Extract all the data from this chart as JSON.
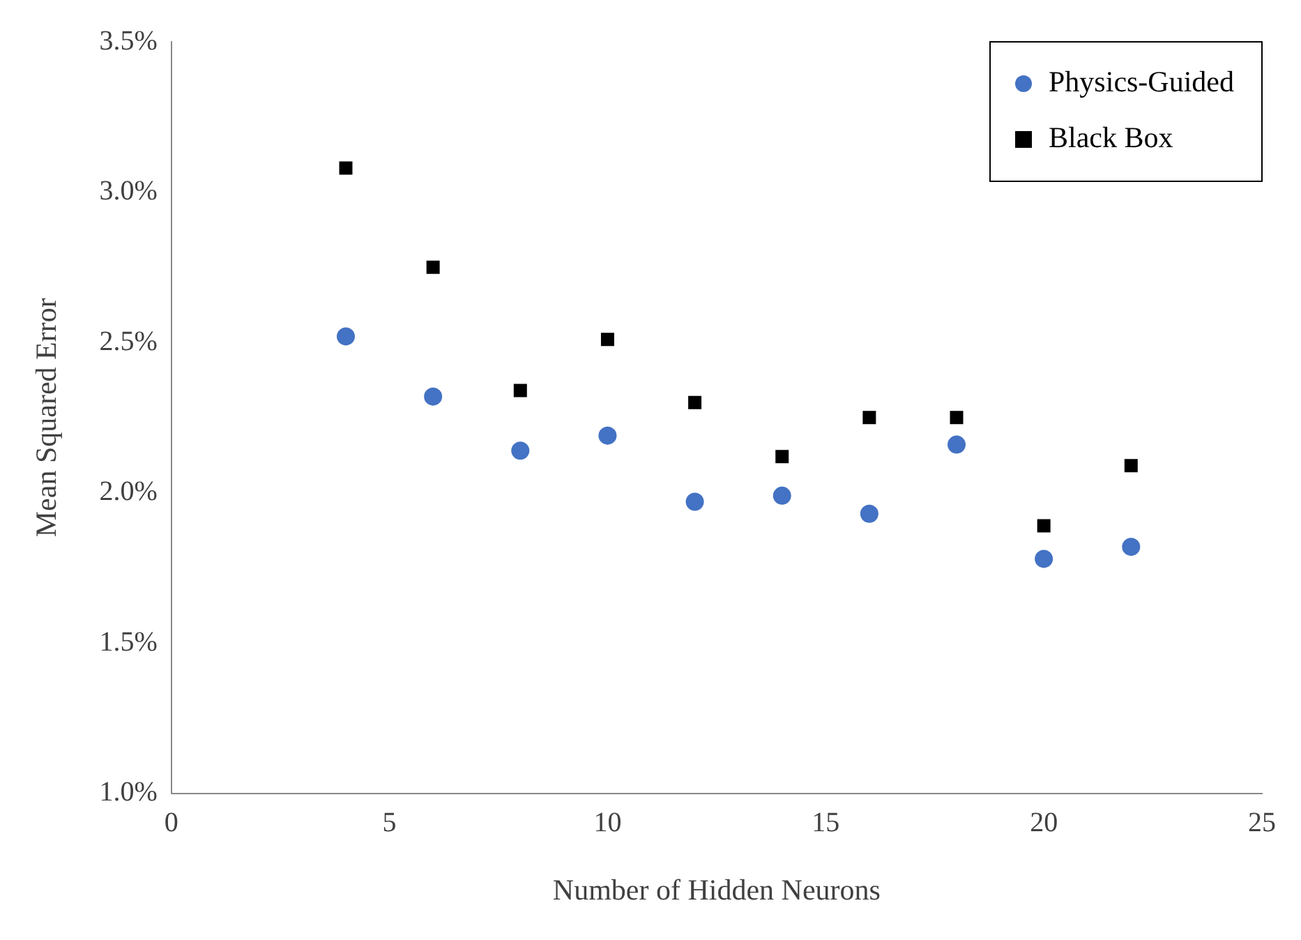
{
  "chart_data": {
    "type": "scatter",
    "xlabel": "Number of Hidden Neurons",
    "ylabel": "Mean Squared Error",
    "x": [
      4,
      6,
      8,
      10,
      12,
      14,
      16,
      18,
      20,
      22
    ],
    "series": [
      {
        "name": "Physics-Guided",
        "color": "#4472c4",
        "marker": "circle",
        "values": [
          2.52,
          2.32,
          2.14,
          2.19,
          1.97,
          1.99,
          1.93,
          2.16,
          1.78,
          1.82
        ]
      },
      {
        "name": "Black Box",
        "color": "#000000",
        "marker": "square",
        "values": [
          3.08,
          2.75,
          2.34,
          2.51,
          2.3,
          2.12,
          2.25,
          2.25,
          1.89,
          2.09
        ]
      }
    ],
    "xlim": [
      0,
      25
    ],
    "xticks": [
      0,
      5,
      10,
      15,
      20,
      25
    ],
    "ylim": [
      1.0,
      3.5
    ],
    "yticks": [
      {
        "value": 1.0,
        "label": "1.0%"
      },
      {
        "value": 1.5,
        "label": "1.5%"
      },
      {
        "value": 2.0,
        "label": "2.0%"
      },
      {
        "value": 2.5,
        "label": "2.5%"
      },
      {
        "value": 3.0,
        "label": "3.0%"
      },
      {
        "value": 3.5,
        "label": "3.5%"
      }
    ],
    "grid": false,
    "legend": "top right"
  }
}
